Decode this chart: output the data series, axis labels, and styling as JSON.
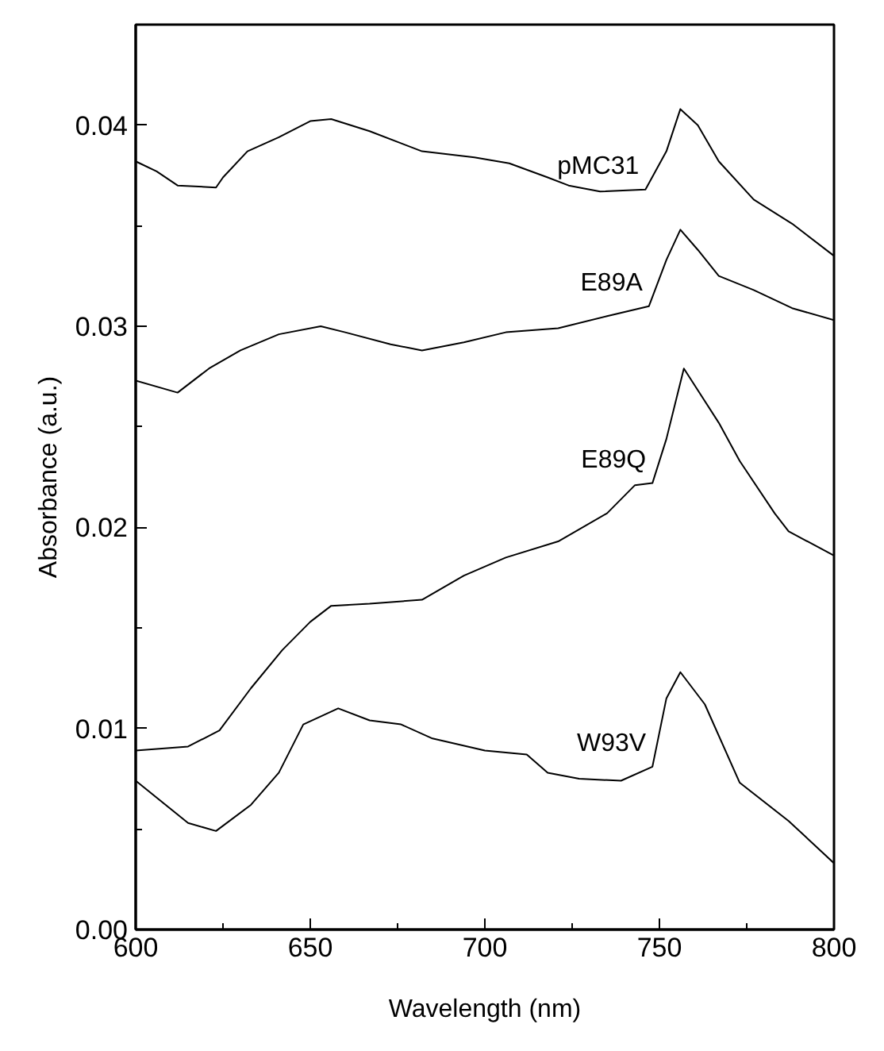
{
  "chart_data": {
    "type": "line",
    "xlabel": "Wavelength (nm)",
    "ylabel": "Absorbance (a.u.)",
    "xlim": [
      600,
      800
    ],
    "ylim": [
      0,
      0.045
    ],
    "xticks": [
      600,
      {
        "value": 625,
        "label": null
      },
      650,
      {
        "value": 675,
        "label": null
      },
      700,
      {
        "value": 725,
        "label": null
      },
      750,
      {
        "value": 775,
        "label": null
      },
      800
    ],
    "yticks": [
      {
        "value": 0,
        "label": "0.00"
      },
      {
        "value": 0.005,
        "label": null
      },
      0.01,
      {
        "value": 0.015,
        "label": null
      },
      0.02,
      {
        "value": 0.025,
        "label": null
      },
      0.03,
      {
        "value": 0.035,
        "label": null
      },
      0.04
    ],
    "grid": false,
    "marker": "none",
    "line_style": "solid",
    "series": [
      {
        "name": "pMC31",
        "color": "#000000",
        "x": [
          600,
          606,
          612,
          623,
          625,
          632,
          641,
          650,
          656,
          667,
          682,
          697,
          707,
          718,
          724,
          733,
          746,
          752,
          756,
          761,
          767,
          777,
          788,
          800
        ],
        "values": [
          0.0382,
          0.0377,
          0.037,
          0.0369,
          0.0374,
          0.0387,
          0.0394,
          0.0402,
          0.0403,
          0.0397,
          0.0387,
          0.0384,
          0.0381,
          0.0374,
          0.037,
          0.0367,
          0.0368,
          0.0387,
          0.0408,
          0.04,
          0.0382,
          0.0363,
          0.0351,
          0.0335
        ]
      },
      {
        "name": "E89A",
        "color": "#000000",
        "x": [
          600,
          612,
          621,
          630,
          641,
          653,
          660,
          673,
          682,
          694,
          706,
          721,
          735,
          747,
          752,
          756,
          761,
          767,
          777,
          788,
          800
        ],
        "values": [
          0.0273,
          0.0267,
          0.0279,
          0.0288,
          0.0296,
          0.03,
          0.0297,
          0.0291,
          0.0288,
          0.0292,
          0.0297,
          0.0299,
          0.0305,
          0.031,
          0.0333,
          0.0348,
          0.0338,
          0.0325,
          0.0318,
          0.0309,
          0.0303
        ]
      },
      {
        "name": "E89Q",
        "color": "#000000",
        "x": [
          600,
          615,
          624,
          633,
          642,
          650,
          656,
          667,
          682,
          694,
          706,
          721,
          735,
          743,
          748,
          752,
          757,
          767,
          773,
          783,
          787,
          800
        ],
        "values": [
          0.0089,
          0.0091,
          0.0099,
          0.012,
          0.0139,
          0.0153,
          0.0161,
          0.0162,
          0.0164,
          0.0176,
          0.0185,
          0.0193,
          0.0207,
          0.0221,
          0.0222,
          0.0244,
          0.0279,
          0.0252,
          0.0233,
          0.0207,
          0.0198,
          0.0186
        ]
      },
      {
        "name": "W93V",
        "color": "#000000",
        "x": [
          600,
          615,
          623,
          633,
          641,
          648,
          658,
          667,
          676,
          685,
          700,
          712,
          718,
          727,
          739,
          748,
          752,
          756,
          763,
          773,
          787,
          800
        ],
        "values": [
          0.0074,
          0.0053,
          0.0049,
          0.0062,
          0.0078,
          0.0102,
          0.011,
          0.0104,
          0.0102,
          0.0095,
          0.0089,
          0.0087,
          0.0078,
          0.0075,
          0.0074,
          0.0081,
          0.0115,
          0.0128,
          0.0112,
          0.0073,
          0.0054,
          0.0033
        ]
      }
    ]
  }
}
